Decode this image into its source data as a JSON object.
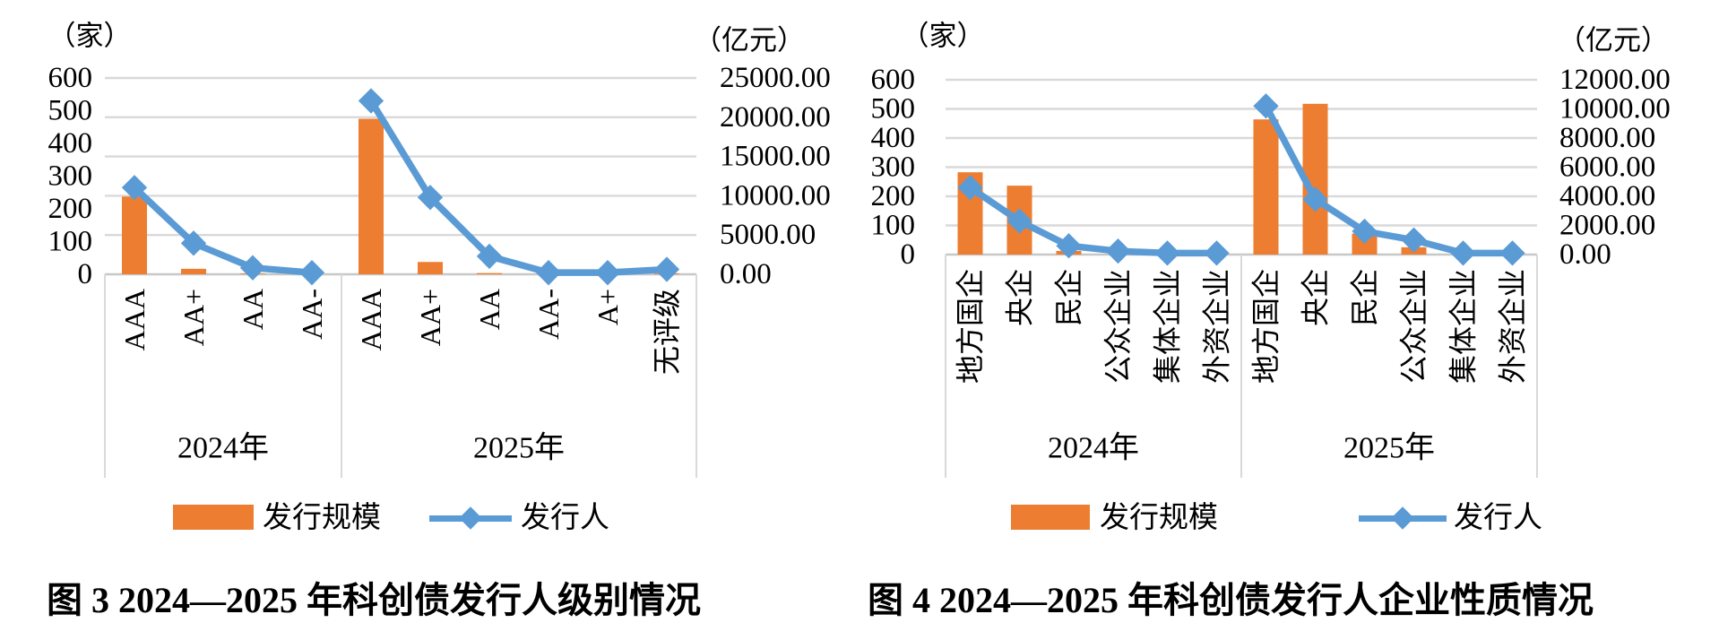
{
  "page": {
    "background": "#ffffff"
  },
  "colors": {
    "bar": "#ED7D31",
    "line": "#5B9BD5",
    "grid": "#D9D9D9",
    "axis": "#C8C8C8",
    "text": "#000000"
  },
  "chart_data": [
    {
      "type": "bar+line combo",
      "caption": "图 3  2024—2025 年科创债发行人级别情况",
      "unit_left": "（家）",
      "unit_right": "（亿元）",
      "left_axis": {
        "label": "（家）",
        "min": 0,
        "max": 600,
        "ticks": [
          "600",
          "500",
          "400",
          "300",
          "200",
          "100",
          "0"
        ]
      },
      "right_axis": {
        "label": "（亿元）",
        "min": 0,
        "max": 25000,
        "ticks": [
          "25000.00",
          "20000.00",
          "15000.00",
          "10000.00",
          "5000.00",
          "0.00"
        ]
      },
      "grid": "on",
      "legend_position": "bottom",
      "groups": [
        {
          "label": "2024年",
          "categories": [
            "AAA",
            "AA+",
            "AA",
            "AA-"
          ]
        },
        {
          "label": "2025年",
          "categories": [
            "AAA",
            "AA+",
            "AA",
            "AA-",
            "A+",
            "无评级"
          ]
        }
      ],
      "series": {
        "bar": {
          "name": "发行规模",
          "axis": "right",
          "unit": "亿元",
          "values": [
            9900,
            700,
            80,
            20,
            19800,
            1570,
            150,
            30,
            20,
            100
          ]
        },
        "line": {
          "name": "发行人",
          "axis": "left",
          "unit": "家",
          "values": [
            265,
            95,
            20,
            5,
            530,
            235,
            55,
            5,
            5,
            15
          ]
        }
      }
    },
    {
      "type": "bar+line combo",
      "caption": "图 4  2024—2025 年科创债发行人企业性质情况",
      "unit_left": "（家）",
      "unit_right": "（亿元）",
      "left_axis": {
        "label": "（家）",
        "min": 0,
        "max": 600,
        "ticks": [
          "600",
          "500",
          "400",
          "300",
          "200",
          "100",
          "0"
        ]
      },
      "right_axis": {
        "label": "（亿元）",
        "min": 0,
        "max": 12000,
        "ticks": [
          "12000.00",
          "10000.00",
          "8000.00",
          "6000.00",
          "4000.00",
          "2000.00",
          "0.00"
        ]
      },
      "grid": "on",
      "legend_position": "bottom",
      "groups": [
        {
          "label": "2024年",
          "categories": [
            "地方国企",
            "央企",
            "民企",
            "公众企业",
            "集体企业",
            "外资企业"
          ]
        },
        {
          "label": "2025年",
          "categories": [
            "地方国企",
            "央企",
            "民企",
            "公众企业",
            "集体企业",
            "外资企业"
          ]
        }
      ],
      "series": {
        "bar": {
          "name": "发行规模",
          "axis": "right",
          "unit": "亿元",
          "values": [
            5650,
            4730,
            250,
            0,
            0,
            0,
            9280,
            10350,
            1440,
            500,
            0,
            0
          ]
        },
        "line": {
          "name": "发行人",
          "axis": "left",
          "unit": "家",
          "values": [
            230,
            115,
            30,
            12,
            5,
            5,
            510,
            190,
            80,
            50,
            5,
            5
          ]
        }
      }
    }
  ]
}
